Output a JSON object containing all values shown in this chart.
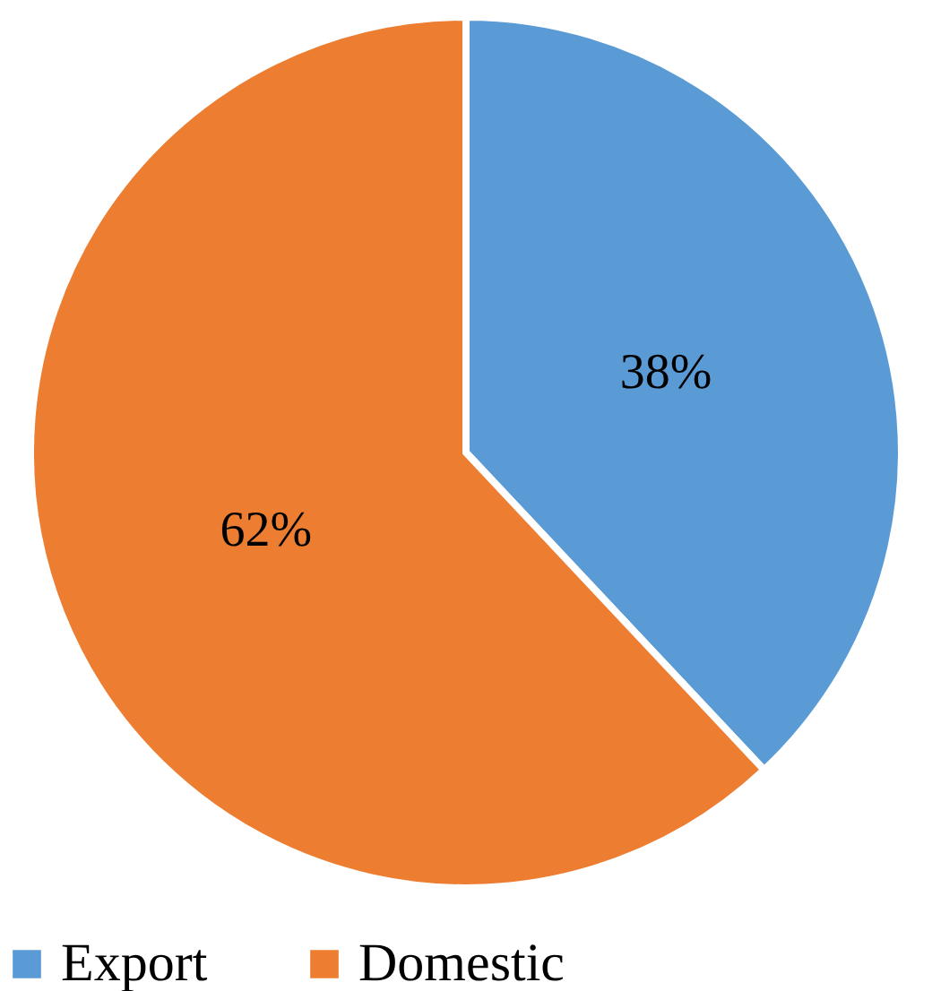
{
  "chart_data": {
    "type": "pie",
    "categories": [
      "Export",
      "Domestic"
    ],
    "values": [
      38,
      62
    ],
    "colors": [
      "#5b9bd5",
      "#ed7d31"
    ],
    "value_labels": [
      "38%",
      "62%"
    ],
    "legend": "bottom"
  }
}
